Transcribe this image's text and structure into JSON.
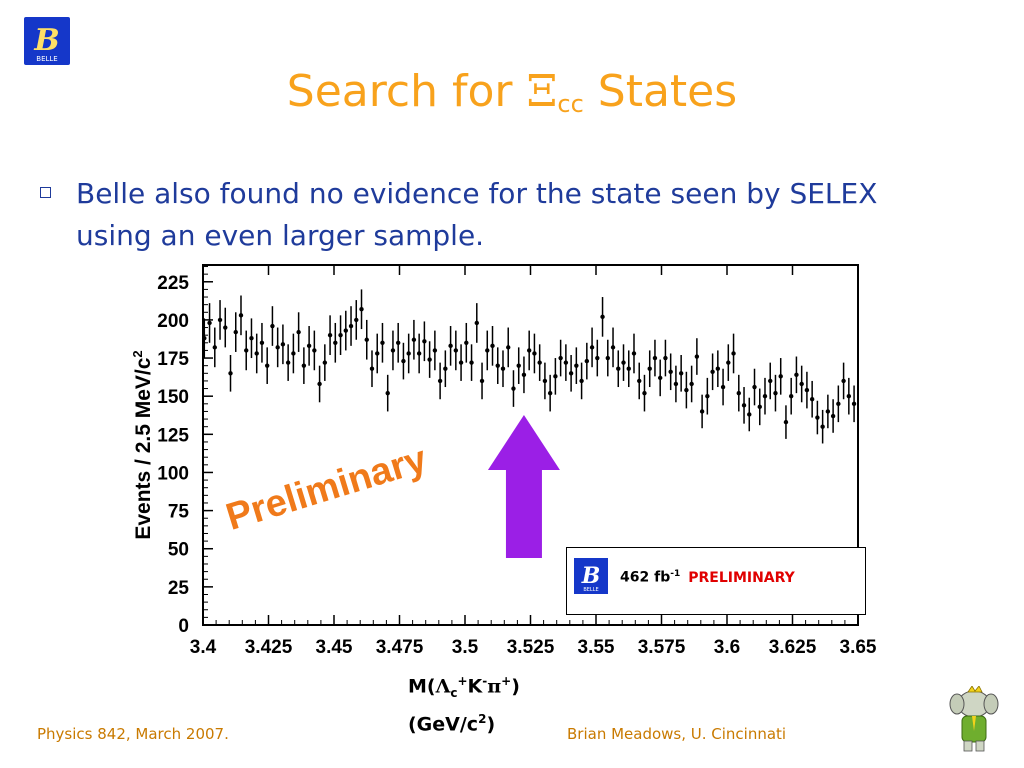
{
  "slide": {
    "title_prefix": "Search for ",
    "title_symbol": "Ξ",
    "title_subscript": "cc",
    "title_suffix": " States",
    "bullet": "Belle also found no evidence for the state seen by SELEX using an even larger sample.",
    "footer_left": "Physics 842, March 2007.",
    "footer_right": "Brian Meadows, U. Cincinnati",
    "xaxis_line1_parts": [
      "M(",
      "Λ",
      "c",
      "+",
      "K",
      "-",
      "π",
      "+",
      ")"
    ],
    "xaxis_line2": "(GeV/c",
    "xaxis_line2_sup": "2",
    "xaxis_line2_end": ")",
    "legend_lumi": "462 fb",
    "legend_lumi_sup": "-1",
    "legend_prelim": "PRELIMINARY",
    "watermark": "Preliminary",
    "logo_letter": "B",
    "logo_caption": "BELLE"
  },
  "colors": {
    "title": "#f8a21c",
    "bullet_text": "#1f3b9b",
    "footer": "#c97a00",
    "watermark": "#f07a1a",
    "arrow": "#9b1fe6",
    "legend_prelim": "#e00000",
    "logo_bg": "#1537c9"
  },
  "chart_data": {
    "type": "scatter",
    "title": "",
    "ylabel": "Events / 2.5 MeV/c²",
    "ylabel_parts": [
      "Events / 2.5 MeV/c",
      "2"
    ],
    "xlabel": "M(Λc+K-π+) (GeV/c2)",
    "xlim": [
      3.4,
      3.65
    ],
    "ylim": [
      0,
      236
    ],
    "xticks": [
      3.4,
      3.425,
      3.45,
      3.475,
      3.5,
      3.525,
      3.55,
      3.575,
      3.6,
      3.625,
      3.65
    ],
    "xtick_labels": [
      "3.4",
      "3.425",
      "3.45",
      "3.475",
      "3.5",
      "3.525",
      "3.55",
      "3.575",
      "3.6",
      "3.625",
      "3.65"
    ],
    "yticks": [
      0,
      25,
      50,
      75,
      100,
      125,
      150,
      175,
      200,
      225
    ],
    "ytick_labels": [
      "0",
      "25",
      "50",
      "75",
      "100",
      "125",
      "150",
      "175",
      "200",
      "225"
    ],
    "series": [
      {
        "style": "points-with-error-bars",
        "x": [
          3.4005,
          3.4025,
          3.4045,
          3.4065,
          3.4085,
          3.4105,
          3.4125,
          3.4145,
          3.4165,
          3.4185,
          3.4205,
          3.4225,
          3.4245,
          3.4265,
          3.4285,
          3.4305,
          3.4325,
          3.4345,
          3.4365,
          3.4385,
          3.4405,
          3.4425,
          3.4445,
          3.4465,
          3.4485,
          3.4505,
          3.4525,
          3.4545,
          3.4565,
          3.4585,
          3.4605,
          3.4625,
          3.4645,
          3.4665,
          3.4685,
          3.4705,
          3.4725,
          3.4745,
          3.4765,
          3.4785,
          3.4805,
          3.4825,
          3.4845,
          3.4865,
          3.4885,
          3.4905,
          3.4925,
          3.4945,
          3.4965,
          3.4985,
          3.5005,
          3.5025,
          3.5045,
          3.5065,
          3.5085,
          3.5105,
          3.5125,
          3.5145,
          3.5165,
          3.5185,
          3.5205,
          3.5225,
          3.5245,
          3.5265,
          3.5285,
          3.5305,
          3.5325,
          3.5345,
          3.5365,
          3.5385,
          3.5405,
          3.5425,
          3.5445,
          3.5465,
          3.5485,
          3.5505,
          3.5525,
          3.5545,
          3.5565,
          3.5585,
          3.5605,
          3.5625,
          3.5645,
          3.5665,
          3.5685,
          3.5705,
          3.5725,
          3.5745,
          3.5765,
          3.5785,
          3.5805,
          3.5825,
          3.5845,
          3.5865,
          3.5885,
          3.5905,
          3.5925,
          3.5945,
          3.5965,
          3.5985,
          3.6005,
          3.6025,
          3.6045,
          3.6065,
          3.6085,
          3.6105,
          3.6125,
          3.6145,
          3.6165,
          3.6185,
          3.6205,
          3.6225,
          3.6245,
          3.6265,
          3.6285,
          3.6305,
          3.6325,
          3.6345,
          3.6365,
          3.6385,
          3.6405,
          3.6425,
          3.6445,
          3.6465,
          3.6485
        ],
        "y": [
          188,
          198,
          182,
          200,
          195,
          165,
          192,
          203,
          180,
          188,
          178,
          185,
          170,
          196,
          182,
          184,
          172,
          178,
          192,
          170,
          183,
          180,
          158,
          172,
          190,
          185,
          190,
          193,
          196,
          200,
          207,
          187,
          168,
          178,
          185,
          152,
          180,
          185,
          173,
          178,
          187,
          178,
          186,
          174,
          180,
          160,
          168,
          183,
          180,
          172,
          185,
          172,
          198,
          160,
          180,
          183,
          170,
          168,
          182,
          155,
          170,
          164,
          180,
          178,
          172,
          160,
          152,
          163,
          175,
          172,
          165,
          170,
          160,
          173,
          182,
          175,
          202,
          175,
          182,
          168,
          172,
          168,
          178,
          160,
          152,
          168,
          175,
          162,
          175,
          166,
          158,
          165,
          154,
          158,
          176,
          140,
          150,
          166,
          168,
          156,
          172,
          178,
          152,
          144,
          138,
          156,
          143,
          150,
          160,
          152,
          163,
          133,
          150,
          164,
          158,
          154,
          148,
          136,
          130,
          140,
          137,
          145,
          160,
          150,
          145
        ],
        "err": [
          13,
          13,
          13,
          13,
          13,
          12,
          13,
          13,
          13,
          13,
          13,
          13,
          12,
          13,
          13,
          13,
          12,
          13,
          13,
          12,
          13,
          13,
          12,
          12,
          13,
          13,
          13,
          13,
          13,
          13,
          13,
          13,
          12,
          13,
          13,
          12,
          13,
          13,
          12,
          13,
          13,
          13,
          13,
          12,
          13,
          12,
          12,
          13,
          13,
          12,
          13,
          12,
          13,
          12,
          13,
          13,
          12,
          12,
          13,
          12,
          12,
          12,
          13,
          13,
          12,
          12,
          12,
          12,
          12,
          12,
          12,
          12,
          12,
          12,
          13,
          12,
          13,
          12,
          13,
          12,
          12,
          12,
          13,
          12,
          12,
          12,
          12,
          12,
          12,
          12,
          12,
          12,
          12,
          12,
          12,
          11,
          12,
          12,
          12,
          12,
          12,
          13,
          12,
          12,
          11,
          12,
          12,
          12,
          12,
          12,
          12,
          11,
          12,
          12,
          12,
          12,
          12,
          11,
          11,
          11,
          11,
          12,
          12,
          12,
          12
        ]
      }
    ],
    "annotations": [
      "Preliminary",
      "462 fb-1 PRELIMINARY"
    ],
    "arrow_at_x": 3.5225,
    "grid": false,
    "legend": "bottom-right"
  }
}
